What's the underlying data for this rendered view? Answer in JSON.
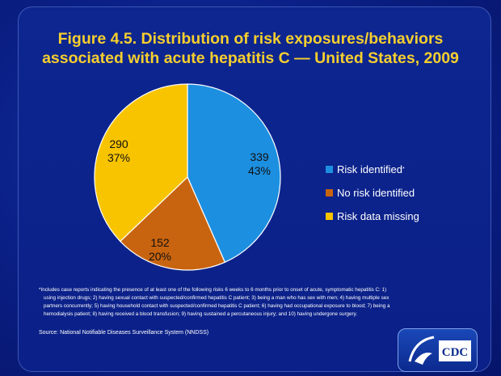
{
  "title_line1": "Figure 4.5. Distribution of risk exposures/behaviors",
  "title_line2": "associated with acute hepatitis C — United States, 2009",
  "chart_data": {
    "type": "pie",
    "start": "top",
    "direction": "clockwise",
    "slices": [
      {
        "name": "Risk identified",
        "marker": "*",
        "value": 339,
        "percent": "43%",
        "color": "#1d8fe0"
      },
      {
        "name": "No risk identified",
        "value": 152,
        "percent": "20%",
        "color": "#c8640f"
      },
      {
        "name": "Risk data missing",
        "value": 290,
        "percent": "37%",
        "color": "#f8c400"
      }
    ],
    "legend_placement": "right"
  },
  "footnote": [
    "*Includes case reports indicating the presence of at least one of the following risks 6 weeks to 6 months prior to onset of acute, symptomatic hepatitis C: 1)",
    "using injection drugs; 2) having sexual contact with suspected/confirmed hepatitis C patient; 3) being a man who has sex with men; 4) having multiple sex",
    "partners concurrently; 5) having household contact with suspected/confirmed hepatitis C patient; 6) having had occupational exposure to blood; 7) being a",
    "hemodialysis patient; 8) having received a blood transfusion; 9) having sustained a percutaneous injury; and 10) having undergone surgery."
  ],
  "source": "Source: National Notifiable Diseases Surveillance System (NNDSS)",
  "logo": "CDC"
}
